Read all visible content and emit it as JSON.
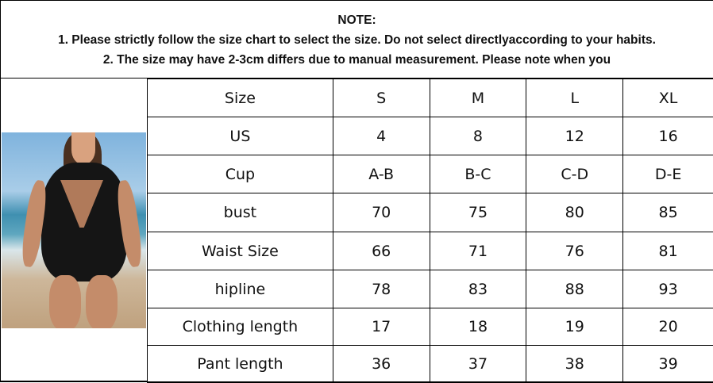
{
  "note": {
    "title": "NOTE:",
    "line1": "1. Please strictly follow the size chart to select the size. Do not select directlyaccording to your habits.",
    "line2": "2. The size may have 2-3cm differs due to manual measurement. Please note when you"
  },
  "photo": {
    "description_icon": "swimsuit-model-photo"
  },
  "table": {
    "rows": [
      [
        "Size",
        "S",
        "M",
        "L",
        "XL"
      ],
      [
        "US",
        "4",
        "8",
        "12",
        "16"
      ],
      [
        "Cup",
        "A-B",
        "B-C",
        "C-D",
        "D-E"
      ],
      [
        "bust",
        "70",
        "75",
        "80",
        "85"
      ],
      [
        "Waist Size",
        "66",
        "71",
        "76",
        "81"
      ],
      [
        "hipline",
        "78",
        "83",
        "88",
        "93"
      ],
      [
        "Clothing length",
        "17",
        "18",
        "19",
        "20"
      ],
      [
        "Pant length",
        "36",
        "37",
        "38",
        "39"
      ]
    ]
  }
}
